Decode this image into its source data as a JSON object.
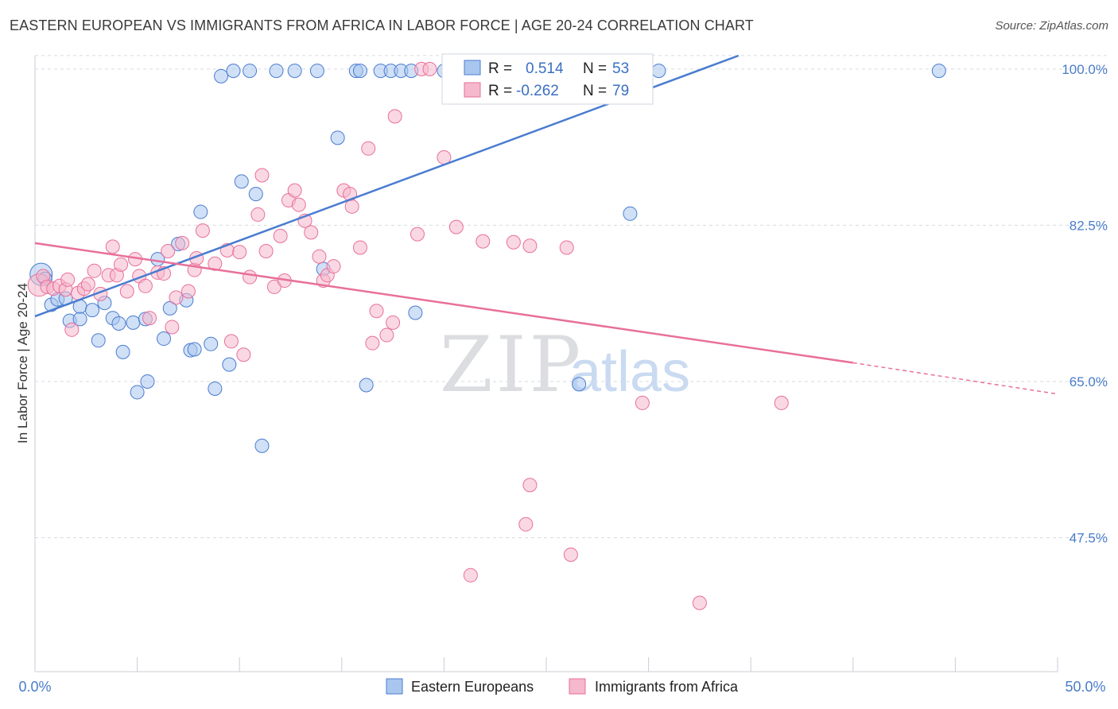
{
  "title": "EASTERN EUROPEAN VS IMMIGRANTS FROM AFRICA IN LABOR FORCE | AGE 20-24 CORRELATION CHART",
  "source": "Source: ZipAtlas.com",
  "watermark": {
    "zip": "ZIP",
    "atlas": "atlas"
  },
  "colors": {
    "blue": "#4a7cd0",
    "blue_fill": "#a9c6ef",
    "pink": "#e8709a",
    "pink_fill": "#f5b8cc",
    "grid": "#d6dbe3",
    "tick_text": "#4a7cc9"
  },
  "stats": {
    "r_label": "R =",
    "n_label": "N =",
    "rows": [
      {
        "series": "Eastern Europeans",
        "r": "0.514",
        "n": "53"
      },
      {
        "series": "Immigrants from Africa",
        "r": "-0.262",
        "n": "79"
      }
    ]
  },
  "chart_data": {
    "type": "scatter",
    "title": "EASTERN EUROPEAN VS IMMIGRANTS FROM AFRICA IN LABOR FORCE | AGE 20-24 CORRELATION CHART",
    "xlabel": "",
    "ylabel": "In Labor Force | Age 20-24",
    "xlim": [
      0,
      50
    ],
    "ylim": [
      32.5,
      101.5
    ],
    "x_tick_labels": [
      "0.0%",
      "50.0%"
    ],
    "y_ticks": [
      47.5,
      65.0,
      82.5,
      100.0
    ],
    "y_tick_labels": [
      "47.5%",
      "65.0%",
      "82.5%",
      "100.0%"
    ],
    "grid": true,
    "legend_position": "bottom-center",
    "series": [
      {
        "name": "Eastern Europeans",
        "color": "#4a7cd0",
        "trend": {
          "x0": 0,
          "y0": 72.3,
          "x1": 34.4,
          "y1": 101.5
        },
        "points": [
          [
            0.3,
            77.0
          ],
          [
            0.5,
            76.5
          ],
          [
            0.8,
            73.6
          ],
          [
            1.1,
            74.2
          ],
          [
            1.5,
            74.3
          ],
          [
            1.7,
            71.8
          ],
          [
            2.2,
            72.0
          ],
          [
            2.2,
            73.4
          ],
          [
            2.8,
            73.0
          ],
          [
            3.1,
            69.6
          ],
          [
            3.4,
            73.8
          ],
          [
            3.8,
            72.1
          ],
          [
            4.1,
            71.5
          ],
          [
            4.3,
            68.3
          ],
          [
            4.8,
            71.6
          ],
          [
            5.0,
            63.8
          ],
          [
            5.4,
            72.0
          ],
          [
            5.5,
            65.0
          ],
          [
            6.0,
            78.7
          ],
          [
            6.3,
            69.8
          ],
          [
            6.6,
            73.2
          ],
          [
            7.0,
            80.4
          ],
          [
            7.4,
            74.1
          ],
          [
            7.6,
            68.5
          ],
          [
            7.8,
            68.6
          ],
          [
            8.1,
            84.0
          ],
          [
            8.6,
            69.2
          ],
          [
            8.8,
            64.2
          ],
          [
            9.1,
            99.2
          ],
          [
            9.5,
            66.9
          ],
          [
            9.7,
            99.8
          ],
          [
            10.1,
            87.4
          ],
          [
            10.5,
            99.8
          ],
          [
            10.8,
            86.0
          ],
          [
            11.1,
            57.8
          ],
          [
            11.8,
            99.8
          ],
          [
            12.7,
            99.8
          ],
          [
            13.8,
            99.8
          ],
          [
            14.1,
            77.6
          ],
          [
            14.8,
            92.3
          ],
          [
            15.7,
            99.8
          ],
          [
            15.9,
            99.8
          ],
          [
            16.2,
            64.6
          ],
          [
            16.9,
            99.8
          ],
          [
            17.4,
            99.8
          ],
          [
            17.9,
            99.8
          ],
          [
            18.4,
            99.8
          ],
          [
            18.6,
            72.7
          ],
          [
            20.0,
            99.8
          ],
          [
            26.6,
            64.7
          ],
          [
            29.1,
            83.8
          ],
          [
            30.5,
            99.8
          ],
          [
            44.2,
            99.8
          ]
        ]
      },
      {
        "name": "Immigrants from Africa",
        "color": "#e8709a",
        "trend": {
          "x0": 0,
          "y0": 80.5,
          "x1": 40.0,
          "y1": 67.1,
          "dash_x1": 50,
          "dash_y1": 63.6
        },
        "points": [
          [
            0.2,
            75.8
          ],
          [
            0.4,
            76.8
          ],
          [
            0.6,
            75.6
          ],
          [
            0.9,
            75.4
          ],
          [
            1.2,
            75.7
          ],
          [
            1.5,
            75.3
          ],
          [
            1.6,
            76.4
          ],
          [
            1.8,
            70.8
          ],
          [
            2.1,
            74.9
          ],
          [
            2.4,
            75.4
          ],
          [
            2.6,
            75.9
          ],
          [
            2.9,
            77.4
          ],
          [
            3.2,
            74.8
          ],
          [
            3.6,
            76.9
          ],
          [
            3.8,
            80.1
          ],
          [
            4.0,
            76.9
          ],
          [
            4.2,
            78.1
          ],
          [
            4.5,
            75.1
          ],
          [
            4.9,
            78.7
          ],
          [
            5.1,
            76.8
          ],
          [
            5.4,
            75.7
          ],
          [
            5.6,
            72.1
          ],
          [
            6.0,
            77.2
          ],
          [
            6.3,
            77.1
          ],
          [
            6.5,
            79.6
          ],
          [
            6.7,
            71.1
          ],
          [
            6.9,
            74.4
          ],
          [
            7.2,
            80.5
          ],
          [
            7.5,
            75.1
          ],
          [
            7.8,
            77.5
          ],
          [
            7.9,
            78.8
          ],
          [
            8.2,
            81.9
          ],
          [
            8.8,
            78.2
          ],
          [
            9.4,
            79.7
          ],
          [
            9.6,
            69.5
          ],
          [
            10.0,
            79.5
          ],
          [
            10.2,
            68.0
          ],
          [
            10.5,
            76.7
          ],
          [
            10.9,
            83.7
          ],
          [
            11.1,
            88.1
          ],
          [
            11.3,
            79.6
          ],
          [
            11.7,
            75.6
          ],
          [
            12.0,
            81.3
          ],
          [
            12.2,
            76.3
          ],
          [
            12.4,
            85.3
          ],
          [
            12.7,
            86.4
          ],
          [
            12.9,
            84.8
          ],
          [
            13.2,
            83.0
          ],
          [
            13.5,
            81.7
          ],
          [
            13.9,
            79.0
          ],
          [
            14.1,
            76.3
          ],
          [
            14.3,
            76.9
          ],
          [
            14.6,
            77.9
          ],
          [
            15.1,
            86.4
          ],
          [
            15.4,
            86.0
          ],
          [
            15.5,
            84.6
          ],
          [
            15.9,
            80.0
          ],
          [
            16.3,
            91.1
          ],
          [
            16.5,
            69.3
          ],
          [
            16.7,
            72.9
          ],
          [
            17.2,
            70.2
          ],
          [
            17.6,
            94.7
          ],
          [
            17.5,
            71.6
          ],
          [
            18.7,
            81.5
          ],
          [
            18.9,
            100.0
          ],
          [
            19.3,
            100.0
          ],
          [
            20.0,
            90.1
          ],
          [
            20.6,
            82.3
          ],
          [
            21.3,
            43.3
          ],
          [
            21.9,
            80.7
          ],
          [
            23.4,
            80.6
          ],
          [
            24.0,
            49.0
          ],
          [
            24.2,
            53.4
          ],
          [
            24.2,
            80.2
          ],
          [
            26.0,
            80.0
          ],
          [
            26.2,
            45.6
          ],
          [
            29.7,
            62.6
          ],
          [
            32.5,
            40.2
          ],
          [
            36.5,
            62.6
          ]
        ]
      }
    ]
  }
}
